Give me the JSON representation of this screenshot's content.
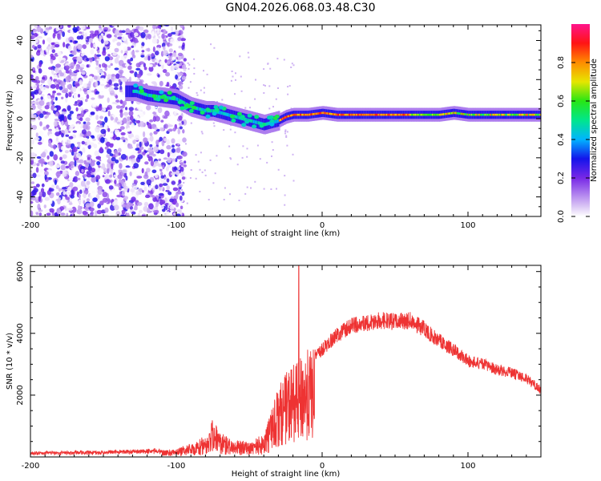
{
  "title": "GN04.2026.068.03.48.C30",
  "chart_data": [
    {
      "type": "heatmap",
      "name": "spectrogram",
      "xlabel": "Height of straight line (km)",
      "ylabel": "Frequency (Hz)",
      "xlim": [
        -200,
        150
      ],
      "ylim": [
        -50,
        48
      ],
      "xticks": [
        -200,
        -100,
        0,
        100
      ],
      "yticks": [
        -40,
        -20,
        0,
        20,
        40
      ],
      "colorbar": {
        "label": "Normalized spectral amplitude",
        "range": [
          0.0,
          1.0
        ],
        "ticks": [
          0.0,
          0.2,
          0.4,
          0.6,
          0.8
        ],
        "tick_labels": [
          "0.0",
          "0.2",
          "0.4",
          "0.6",
          "0.8"
        ]
      },
      "ridge": {
        "x": [
          -128,
          -120,
          -110,
          -100,
          -95,
          -90,
          -85,
          -80,
          -75,
          -70,
          -65,
          -60,
          -55,
          -50,
          -45,
          -40,
          -35,
          -30,
          -25,
          -20,
          -10,
          0,
          10,
          20,
          40,
          60,
          80,
          90,
          100,
          120,
          150
        ],
        "y": [
          14,
          12,
          11,
          10,
          8,
          6,
          5,
          4,
          4,
          3,
          2,
          1,
          0,
          -1,
          -2,
          -3,
          -2,
          -1,
          1,
          2,
          2,
          3,
          2,
          2,
          2,
          2,
          2,
          3,
          2,
          2,
          2
        ]
      },
      "noise_region_x": [
        -200,
        -100
      ]
    },
    {
      "type": "line",
      "name": "snr",
      "xlabel": "Height of straight line (km)",
      "ylabel": "SNR (10 * v/v)",
      "xlim": [
        -200,
        150
      ],
      "ylim": [
        0,
        6200
      ],
      "xticks": [
        -200,
        -100,
        0,
        100
      ],
      "yticks": [
        2000,
        4000,
        6000
      ],
      "color": "#ee3333",
      "envelope": {
        "x": [
          -200,
          -150,
          -120,
          -100,
          -90,
          -80,
          -75,
          -70,
          -60,
          -50,
          -40,
          -35,
          -30,
          -25,
          -20,
          -18,
          -15,
          -10,
          -5,
          0,
          10,
          20,
          30,
          40,
          50,
          60,
          70,
          80,
          90,
          100,
          110,
          120,
          130,
          140,
          150
        ],
        "y": [
          120,
          150,
          200,
          250,
          450,
          700,
          1300,
          800,
          500,
          600,
          700,
          1500,
          2300,
          2700,
          3100,
          3000,
          3200,
          3500,
          3500,
          3700,
          4200,
          4500,
          4600,
          4700,
          4650,
          4700,
          4400,
          4000,
          3700,
          3300,
          3200,
          3000,
          2900,
          2700,
          2300
        ]
      },
      "spike": {
        "x": -16,
        "y": 6200
      }
    }
  ]
}
